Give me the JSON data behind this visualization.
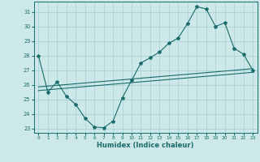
{
  "xlabel": "Humidex (Indice chaleur)",
  "bg_color": "#cce8e8",
  "line_color": "#1a6b6b",
  "grid_color": "#aad4d4",
  "xlim": [
    -0.5,
    23.5
  ],
  "ylim": [
    22.7,
    31.7
  ],
  "yticks": [
    23,
    24,
    25,
    26,
    27,
    28,
    29,
    30,
    31
  ],
  "xticks": [
    0,
    1,
    2,
    3,
    4,
    5,
    6,
    7,
    8,
    9,
    10,
    11,
    12,
    13,
    14,
    15,
    16,
    17,
    18,
    19,
    20,
    21,
    22,
    23
  ],
  "line1_x": [
    0,
    1,
    2,
    3,
    4,
    5,
    6,
    7,
    8,
    9,
    10,
    11,
    12,
    13,
    14,
    15,
    16,
    17,
    18,
    19,
    20,
    21,
    22,
    23
  ],
  "line1_y": [
    28.0,
    25.5,
    26.2,
    25.2,
    24.65,
    23.7,
    23.1,
    23.05,
    23.5,
    25.1,
    26.3,
    27.5,
    27.85,
    28.25,
    28.85,
    29.2,
    30.2,
    31.35,
    31.2,
    30.0,
    30.25,
    28.5,
    28.1,
    27.0
  ],
  "line2_x": [
    0,
    23
  ],
  "line2_y": [
    25.85,
    27.1
  ],
  "line3_x": [
    0,
    23
  ],
  "line3_y": [
    25.6,
    26.85
  ]
}
